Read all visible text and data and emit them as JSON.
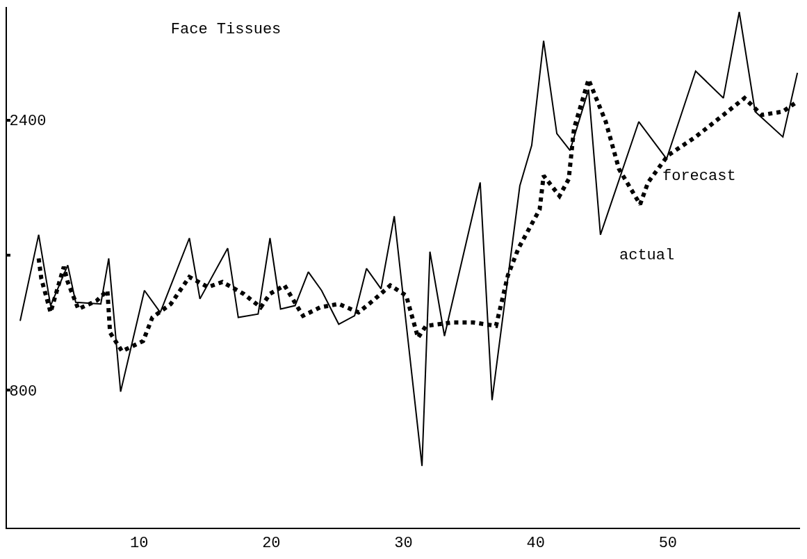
{
  "chart_data": {
    "type": "line",
    "title": "Face Tissues",
    "xlim": [
      0,
      60
    ],
    "xticks": [
      10,
      20,
      30,
      40,
      50
    ],
    "ylim": [
      -16,
      3070
    ],
    "yticks": [
      800,
      {
        "value": 1600,
        "label": null
      },
      2400
    ],
    "marker": "none",
    "series": [
      {
        "name": "actual",
        "color": "#000000",
        "line_style": "solid",
        "x": [
          1.0,
          2.4,
          3.3,
          4.6,
          5.2,
          7.1,
          7.7,
          8.6,
          10.4,
          11.6,
          13.8,
          14.6,
          16.7,
          17.5,
          19.0,
          19.9,
          20.7,
          21.8,
          22.8,
          23.8,
          25.1,
          26.3,
          27.2,
          28.3,
          29.3,
          31.4,
          32.0,
          33.1,
          35.8,
          36.7,
          38.8,
          39.7,
          40.6,
          41.6,
          42.6,
          44.0,
          44.9,
          47.8,
          49.9,
          52.1,
          54.2,
          55.4,
          56.6,
          58.7,
          59.8
        ],
        "values": [
          1210,
          1720,
          1300,
          1540,
          1320,
          1310,
          1580,
          790,
          1390,
          1260,
          1700,
          1340,
          1640,
          1230,
          1250,
          1700,
          1280,
          1300,
          1500,
          1390,
          1190,
          1240,
          1520,
          1400,
          1830,
          350,
          1620,
          1120,
          2030,
          740,
          2010,
          2250,
          2870,
          2320,
          2220,
          2580,
          1720,
          2390,
          2170,
          2690,
          2530,
          3040,
          2450,
          2300,
          2680
        ]
      },
      {
        "name": "forecast",
        "color": "#000000",
        "line_style": "dotted",
        "x": [
          2.4,
          2.6,
          3.3,
          4.3,
          4.6,
          5.4,
          6.8,
          7.6,
          7.8,
          8.7,
          10.3,
          11.0,
          12.4,
          13.8,
          15.2,
          16.3,
          17.9,
          19.2,
          19.9,
          21.0,
          22.0,
          22.4,
          23.7,
          25.1,
          26.6,
          27.7,
          29.0,
          30.2,
          31.1,
          31.7,
          33.7,
          35.3,
          37.0,
          37.9,
          38.7,
          40.3,
          40.6,
          41.8,
          42.5,
          42.9,
          44.0,
          45.3,
          46.3,
          47.9,
          48.5,
          50.0,
          52.1,
          54.2,
          55.8,
          57.1,
          58.7,
          59.8
        ],
        "values": [
          1580,
          1460,
          1260,
          1530,
          1440,
          1280,
          1330,
          1390,
          1140,
          1030,
          1090,
          1230,
          1310,
          1470,
          1410,
          1440,
          1370,
          1290,
          1370,
          1420,
          1290,
          1240,
          1290,
          1310,
          1260,
          1330,
          1420,
          1360,
          1110,
          1180,
          1200,
          1200,
          1180,
          1480,
          1640,
          1870,
          2070,
          1950,
          2050,
          2350,
          2640,
          2390,
          2110,
          1900,
          2030,
          2190,
          2300,
          2430,
          2530,
          2430,
          2450,
          2510
        ]
      }
    ]
  }
}
